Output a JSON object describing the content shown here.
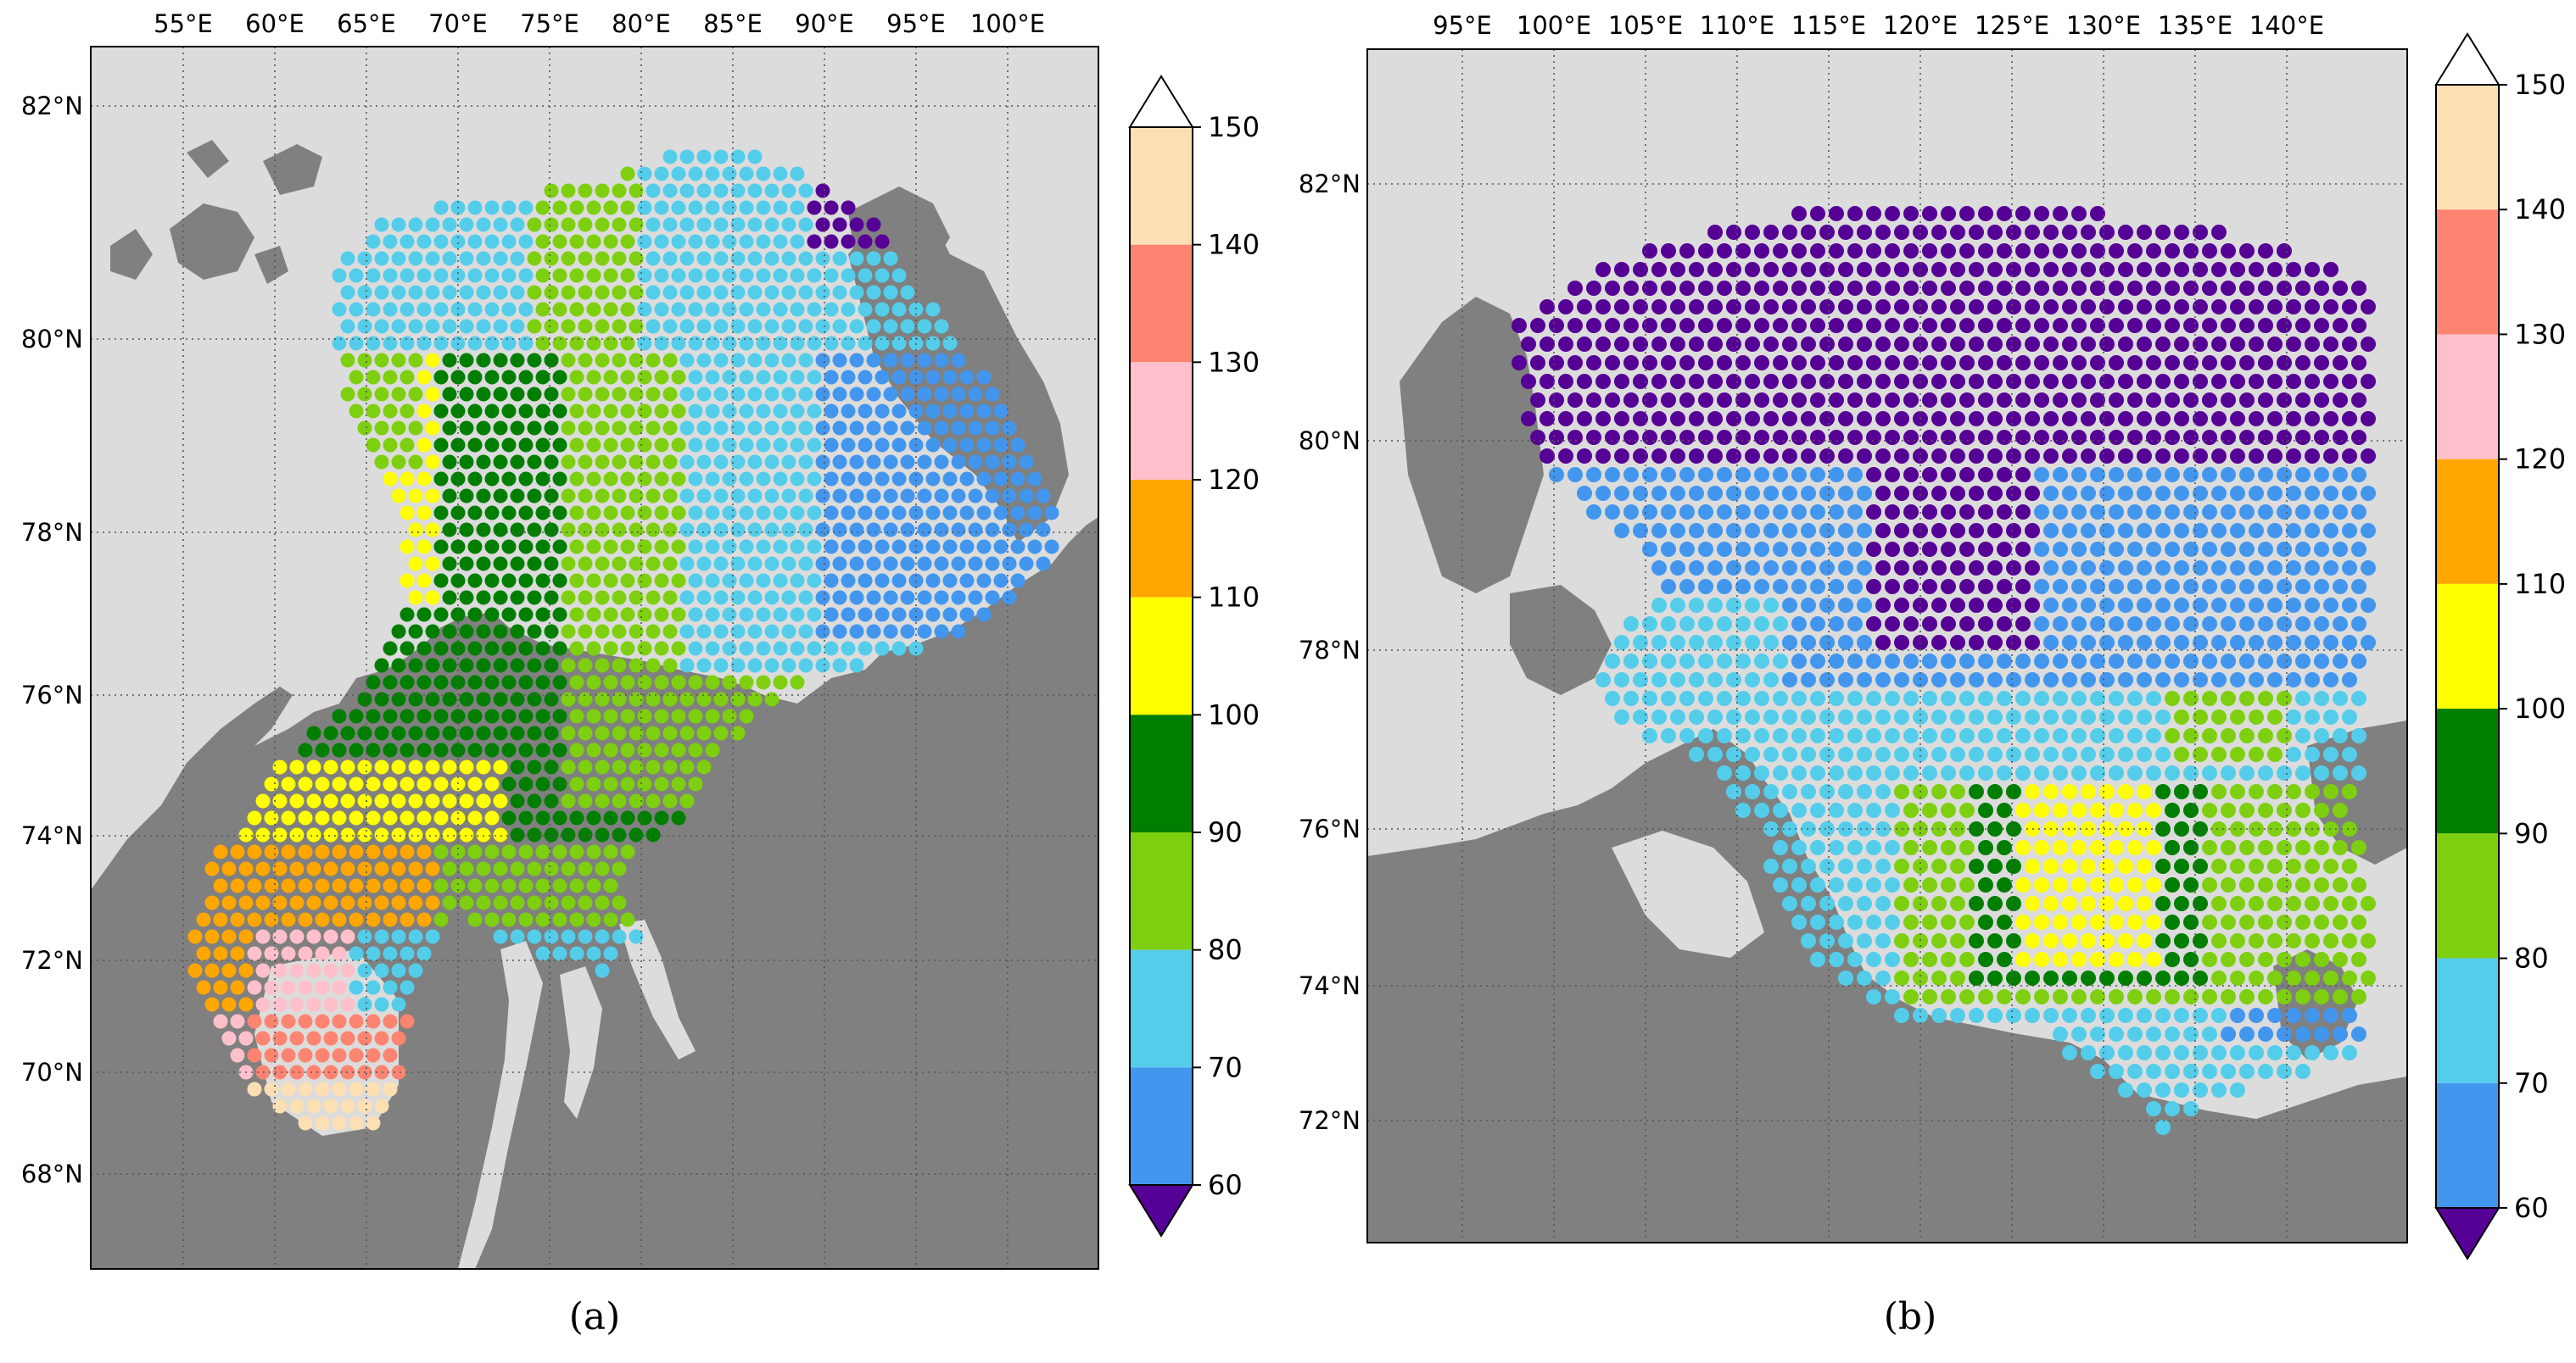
{
  "panels": [
    {
      "caption": "(a)",
      "lon_labels": [
        "55°E",
        "60°E",
        "65°E",
        "70°E",
        "75°E",
        "80°E",
        "85°E",
        "90°E",
        "95°E",
        "100°E"
      ],
      "lat_labels": [
        "82°N",
        "80°N",
        "78°N",
        "76°N",
        "74°N",
        "72°N",
        "70°N",
        "68°N"
      ],
      "colorbar_ticks": [
        "150",
        "140",
        "130",
        "120",
        "110",
        "100",
        "90",
        "80",
        "70",
        "60"
      ]
    },
    {
      "caption": "(b)",
      "lon_labels": [
        "95°E",
        "100°E",
        "105°E",
        "110°E",
        "115°E",
        "120°E",
        "125°E",
        "130°E",
        "135°E",
        "140°E"
      ],
      "lat_labels": [
        "82°N",
        "80°N",
        "78°N",
        "76°N",
        "74°N",
        "72°N"
      ],
      "colorbar_ticks": [
        "150",
        "140",
        "130",
        "120",
        "110",
        "100",
        "90",
        "80",
        "70",
        "60"
      ]
    }
  ],
  "colormap": {
    "bounds": [
      60,
      70,
      80,
      90,
      100,
      110,
      120,
      130,
      140,
      150
    ],
    "colors": [
      "#4396ee",
      "#54cdeb",
      "#7ecf0f",
      "#007e00",
      "#ffff00",
      "#ffa600",
      "#ffc0cb",
      "#fe8472",
      "#fddfb4"
    ],
    "under_color": "#560196",
    "over_color": "#ffffff"
  },
  "style": {
    "ocean_color": "#dcdcdc",
    "land_color": "#808080",
    "gridline_color": "#555555",
    "gridlines": "dotted"
  }
}
